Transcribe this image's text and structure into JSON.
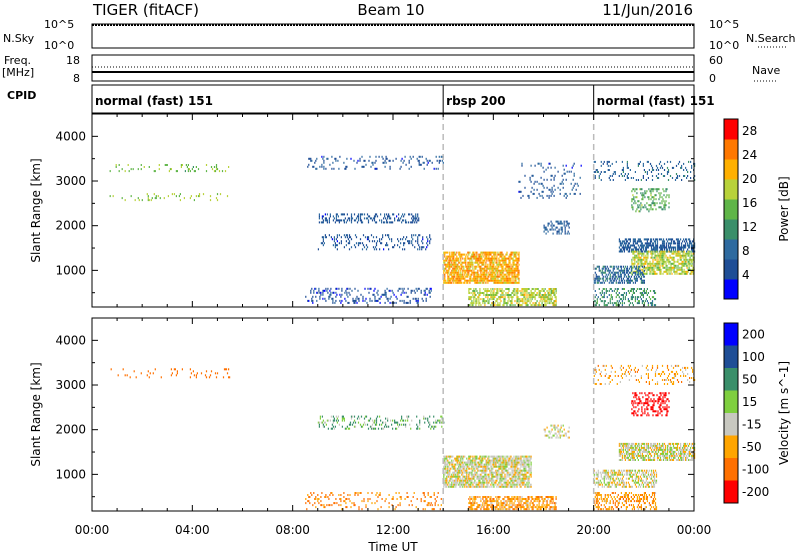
{
  "header": {
    "title": "TIGER (fitACF)",
    "beam": "Beam 10",
    "date": "11/Jun/2016"
  },
  "strips": {
    "nsky_label": "N.Sky",
    "nsky_ticks": [
      "10^5",
      "10^0"
    ],
    "nsearch_label": "N.Search",
    "nsearch_ticks": [
      "10^5",
      "10^0"
    ],
    "freq_label_1": "Freq.",
    "freq_label_2": "[MHz]",
    "freq_ticks": [
      "18",
      "8"
    ],
    "nave_label": "Nave",
    "nave_ticks": [
      "60",
      "0"
    ],
    "cpid_label": "CPID",
    "cpid_segments": [
      {
        "label": "normal (fast) 151",
        "start_h": 0,
        "end_h": 14
      },
      {
        "label": "rbsp 200",
        "start_h": 14,
        "end_h": 20
      },
      {
        "label": "normal (fast) 151",
        "start_h": 20,
        "end_h": 24
      }
    ]
  },
  "colors": {
    "power_scale": [
      "#0000ff",
      "#1f4e96",
      "#2e6a9f",
      "#3a8f6a",
      "#5fb548",
      "#b8d23a",
      "#ffb000",
      "#ff7800",
      "#ff0000"
    ],
    "velocity_scale": [
      "#0000ff",
      "#1f4e96",
      "#3a8f6a",
      "#7fcf3f",
      "#c8c8c0",
      "#ffa500",
      "#ff7000",
      "#ff0000"
    ]
  },
  "chart_data": [
    {
      "type": "heatmap",
      "name": "Power",
      "xlabel": "",
      "ylabel": "Slant Range [km]",
      "xlim_hours": [
        0,
        24
      ],
      "ylim_km": [
        180,
        4500
      ],
      "x_ticks": [
        "00:00",
        "04:00",
        "08:00",
        "12:00",
        "16:00",
        "20:00",
        "00:00"
      ],
      "y_ticks": [
        1000,
        2000,
        3000,
        4000
      ],
      "colorbar_label": "Power [dB]",
      "colorbar_ticks": [
        4,
        8,
        12,
        16,
        20,
        24,
        28
      ],
      "colorbar_range": [
        0,
        30
      ],
      "mode_boundaries_h": [
        14,
        20
      ],
      "features": [
        {
          "t": [
            0.5,
            5.5
          ],
          "r": [
            3200,
            3350
          ],
          "value": 16,
          "density": 0.12
        },
        {
          "t": [
            0.5,
            5.5
          ],
          "r": [
            2550,
            2700
          ],
          "value": 17,
          "density": 0.08
        },
        {
          "t": [
            8.5,
            14.0
          ],
          "r": [
            3250,
            3550
          ],
          "value": 6,
          "density": 0.12
        },
        {
          "t": [
            9.0,
            13.0
          ],
          "r": [
            2050,
            2250
          ],
          "value": 6,
          "density": 0.35
        },
        {
          "t": [
            9.0,
            13.5
          ],
          "r": [
            1450,
            1800
          ],
          "value": 6,
          "density": 0.18
        },
        {
          "t": [
            8.5,
            13.5
          ],
          "r": [
            250,
            600
          ],
          "value": 5,
          "density": 0.2
        },
        {
          "t": [
            14.0,
            17.0
          ],
          "r": [
            700,
            1400
          ],
          "value": 22,
          "density": 0.7
        },
        {
          "t": [
            15.0,
            18.5
          ],
          "r": [
            200,
            600
          ],
          "value": 18,
          "density": 0.55
        },
        {
          "t": [
            17.0,
            19.5
          ],
          "r": [
            2600,
            3400
          ],
          "value": 6,
          "density": 0.1
        },
        {
          "t": [
            18.0,
            19.0
          ],
          "r": [
            1800,
            2100
          ],
          "value": 7,
          "density": 0.35
        },
        {
          "t": [
            20.0,
            24.0
          ],
          "r": [
            3000,
            3450
          ],
          "value": 8,
          "density": 0.15
        },
        {
          "t": [
            21.5,
            23.0
          ],
          "r": [
            2300,
            2800
          ],
          "value": 14,
          "density": 0.3
        },
        {
          "t": [
            21.0,
            24.0
          ],
          "r": [
            1400,
            1700
          ],
          "value": 7,
          "density": 0.6
        },
        {
          "t": [
            21.5,
            24.0
          ],
          "r": [
            900,
            1400
          ],
          "value": 18,
          "density": 0.6
        },
        {
          "t": [
            20.0,
            22.0
          ],
          "r": [
            700,
            1100
          ],
          "value": 8,
          "density": 0.5
        },
        {
          "t": [
            20.0,
            22.5
          ],
          "r": [
            200,
            600
          ],
          "value": 12,
          "density": 0.35
        }
      ]
    },
    {
      "type": "heatmap",
      "name": "Velocity",
      "xlabel": "Time UT",
      "ylabel": "Slant Range [km]",
      "xlim_hours": [
        0,
        24
      ],
      "ylim_km": [
        180,
        4500
      ],
      "x_ticks": [
        "00:00",
        "04:00",
        "08:00",
        "12:00",
        "16:00",
        "20:00",
        "00:00"
      ],
      "y_ticks": [
        1000,
        2000,
        3000,
        4000
      ],
      "colorbar_label": "Velocity [m s^-1]",
      "colorbar_ticks": [
        200,
        100,
        50,
        15,
        -15,
        -50,
        -100,
        -200
      ],
      "mode_boundaries_h": [
        14,
        20
      ],
      "features": [
        {
          "t": [
            0.5,
            5.5
          ],
          "r": [
            3150,
            3350
          ],
          "value": -80,
          "density": 0.1
        },
        {
          "t": [
            9.0,
            14.0
          ],
          "r": [
            2000,
            2300
          ],
          "value": 30,
          "density": 0.2
        },
        {
          "t": [
            8.5,
            14.0
          ],
          "r": [
            200,
            600
          ],
          "value": -60,
          "density": 0.15
        },
        {
          "t": [
            14.0,
            17.5
          ],
          "r": [
            700,
            1400
          ],
          "value": 0,
          "density": 0.7
        },
        {
          "t": [
            15.0,
            18.5
          ],
          "r": [
            200,
            500
          ],
          "value": -40,
          "density": 0.55
        },
        {
          "t": [
            18.0,
            19.0
          ],
          "r": [
            1800,
            2100
          ],
          "value": 0,
          "density": 0.3
        },
        {
          "t": [
            21.5,
            23.0
          ],
          "r": [
            2300,
            2800
          ],
          "value": -200,
          "density": 0.35
        },
        {
          "t": [
            21.0,
            24.0
          ],
          "r": [
            1300,
            1700
          ],
          "value": 0,
          "density": 0.7
        },
        {
          "t": [
            20.0,
            22.5
          ],
          "r": [
            700,
            1100
          ],
          "value": 0,
          "density": 0.5
        },
        {
          "t": [
            20.0,
            22.5
          ],
          "r": [
            200,
            600
          ],
          "value": -40,
          "density": 0.4
        },
        {
          "t": [
            20.0,
            24.0
          ],
          "r": [
            3000,
            3450
          ],
          "value": -30,
          "density": 0.15
        }
      ]
    }
  ]
}
